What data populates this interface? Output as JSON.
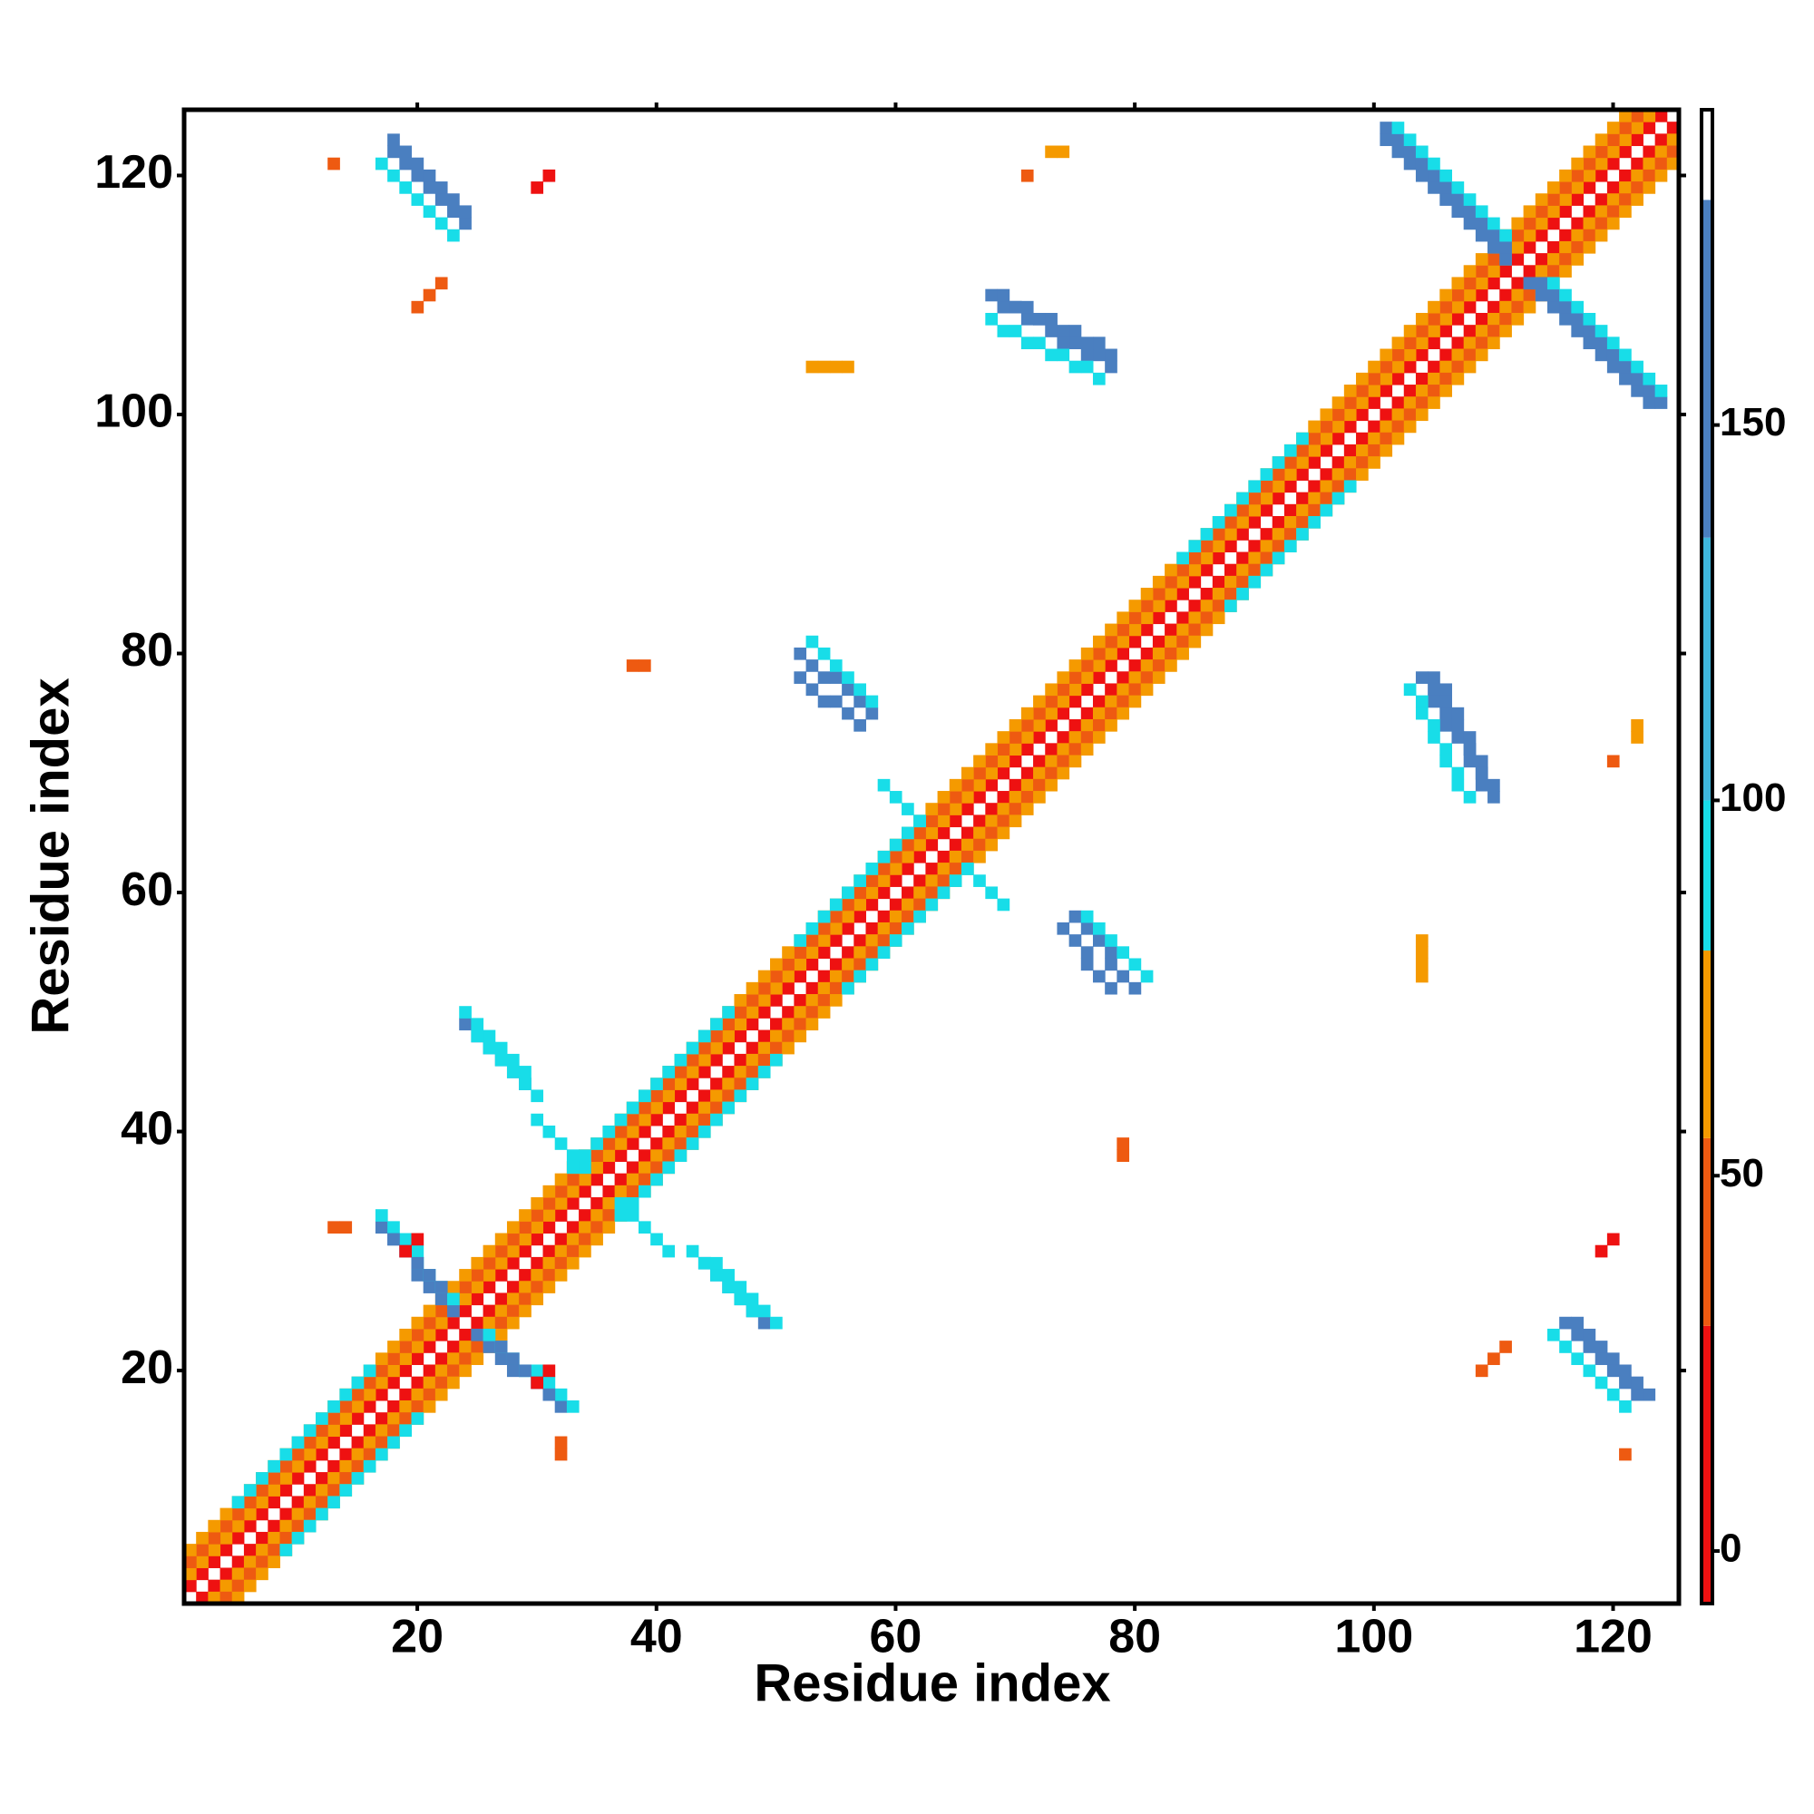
{
  "chart_data": {
    "type": "heatmap",
    "symmetric": true,
    "xlabel": "Residue index",
    "ylabel": "Residue index",
    "xlim": [
      0.5,
      125.5
    ],
    "ylim": [
      0.5,
      125.5
    ],
    "xticks": [
      20,
      40,
      60,
      80,
      100,
      120
    ],
    "yticks": [
      20,
      40,
      60,
      80,
      100,
      120
    ],
    "runs": [
      [
        2,
        1,
        125,
        124,
        15
      ],
      [
        3,
        1,
        125,
        123,
        55
      ],
      [
        4,
        1,
        125,
        122,
        40
      ],
      [
        5,
        1,
        125,
        121,
        60
      ],
      [
        9,
        5,
        20,
        16,
        90
      ],
      [
        37,
        33,
        50,
        46,
        92
      ],
      [
        56,
        52,
        66,
        62,
        95
      ],
      [
        88,
        84,
        98,
        94,
        90
      ],
      [
        25,
        23,
        32,
        17,
        150
      ],
      [
        26,
        23,
        33,
        17,
        92
      ],
      [
        27,
        22,
        31,
        18,
        140
      ],
      [
        113,
        111,
        123,
        101,
        150
      ],
      [
        114,
        111,
        124,
        101,
        140
      ],
      [
        115,
        111,
        124,
        102,
        92
      ],
      [
        44,
        29,
        49,
        24,
        145
      ],
      [
        45,
        29,
        50,
        24,
        95
      ],
      [
        43,
        30,
        48,
        25,
        92
      ],
      [
        75,
        58,
        80,
        52,
        150
      ],
      [
        76,
        58,
        81,
        53,
        95
      ],
      [
        74,
        57,
        78,
        52,
        140
      ],
      [
        104,
        78,
        110,
        68,
        150
      ],
      [
        105,
        78,
        110,
        69,
        140
      ],
      [
        103,
        77,
        108,
        68,
        92
      ],
      [
        116,
        24,
        122,
        18,
        150
      ],
      [
        117,
        24,
        123,
        18,
        145
      ],
      [
        115,
        23,
        121,
        17,
        92
      ],
      [
        66,
        62,
        69,
        59,
        95
      ],
      [
        37,
        34,
        41,
        30,
        92
      ],
      [
        120,
        71,
        120,
        71,
        40
      ],
      [
        122,
        73,
        122,
        74,
        55
      ],
      [
        104,
        53,
        104,
        56,
        60
      ],
      [
        79,
        38,
        79,
        39,
        45
      ],
      [
        30,
        19,
        31,
        20,
        10
      ],
      [
        13,
        32,
        14,
        32,
        45
      ],
      [
        109,
        20,
        111,
        22,
        40
      ],
      [
        121,
        13,
        121,
        13,
        45
      ],
      [
        119,
        30,
        120,
        31,
        10
      ]
    ],
    "colorbar": {
      "lim": [
        -7,
        192
      ],
      "ticks": [
        0,
        50,
        100,
        150
      ],
      "segments": [
        [
          -7,
          30,
          "#ee1111"
        ],
        [
          30,
          55,
          "#ee5a11"
        ],
        [
          55,
          80,
          "#f59a00"
        ],
        [
          80,
          100,
          "#18dde8"
        ],
        [
          100,
          135,
          "#3fb6dc"
        ],
        [
          135,
          180,
          "#4a7fc0"
        ],
        [
          180,
          192,
          "#ffffff"
        ]
      ]
    }
  }
}
